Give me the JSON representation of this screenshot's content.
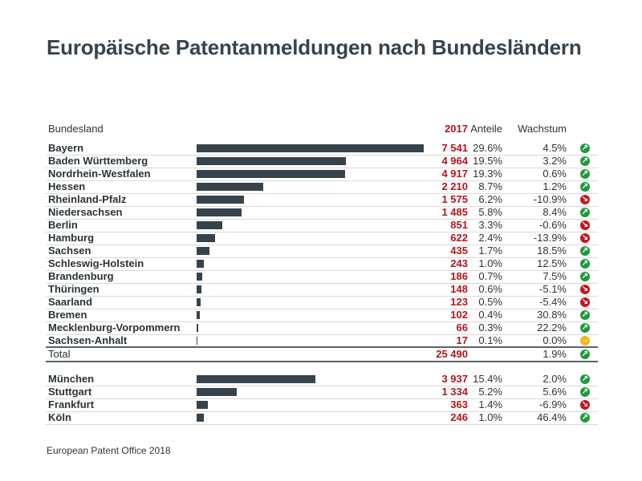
{
  "title": "Europäische Patentanmeldungen nach Bundesländern",
  "footer": "European Patent Office 2018",
  "colors": {
    "bar": "#37434b",
    "value": "#b2161c",
    "up": "#1f9a3a",
    "down": "#c8151b",
    "flat": "#f2b51c"
  },
  "chart_data": {
    "type": "table",
    "title": "Europäische Patentanmeldungen nach Bundesländern",
    "columns": [
      "Bundesland",
      "2017",
      "Anteile",
      "Wachstum"
    ],
    "rows": [
      {
        "name": "Bayern",
        "value": 7541,
        "value_label": "7 541",
        "share": "29.6%",
        "growth": "4.5%",
        "trend": "up"
      },
      {
        "name": "Baden Württemberg",
        "value": 4964,
        "value_label": "4 964",
        "share": "19.5%",
        "growth": "3.2%",
        "trend": "up"
      },
      {
        "name": "Nordrhein-Westfalen",
        "value": 4917,
        "value_label": "4 917",
        "share": "19.3%",
        "growth": "0.6%",
        "trend": "up"
      },
      {
        "name": "Hessen",
        "value": 2210,
        "value_label": "2 210",
        "share": "8.7%",
        "growth": "1.2%",
        "trend": "up"
      },
      {
        "name": "Rheinland-Pfalz",
        "value": 1575,
        "value_label": "1 575",
        "share": "6.2%",
        "growth": "-10.9%",
        "trend": "down"
      },
      {
        "name": "Niedersachsen",
        "value": 1485,
        "value_label": "1 485",
        "share": "5.8%",
        "growth": "8.4%",
        "trend": "up"
      },
      {
        "name": "Berlin",
        "value": 851,
        "value_label": "851",
        "share": "3.3%",
        "growth": "-0.6%",
        "trend": "down"
      },
      {
        "name": "Hamburg",
        "value": 622,
        "value_label": "622",
        "share": "2.4%",
        "growth": "-13.9%",
        "trend": "down"
      },
      {
        "name": "Sachsen",
        "value": 435,
        "value_label": "435",
        "share": "1.7%",
        "growth": "18.5%",
        "trend": "up"
      },
      {
        "name": "Schleswig-Holstein",
        "value": 243,
        "value_label": "243",
        "share": "1.0%",
        "growth": "12.5%",
        "trend": "up"
      },
      {
        "name": "Brandenburg",
        "value": 186,
        "value_label": "186",
        "share": "0.7%",
        "growth": "7.5%",
        "trend": "up"
      },
      {
        "name": "Thüringen",
        "value": 148,
        "value_label": "148",
        "share": "0.6%",
        "growth": "-5.1%",
        "trend": "down"
      },
      {
        "name": "Saarland",
        "value": 123,
        "value_label": "123",
        "share": "0.5%",
        "growth": "-5.4%",
        "trend": "down"
      },
      {
        "name": "Bremen",
        "value": 102,
        "value_label": "102",
        "share": "0.4%",
        "growth": "30.8%",
        "trend": "up"
      },
      {
        "name": "Mecklenburg-Vorpommern",
        "value": 66,
        "value_label": "66",
        "share": "0.3%",
        "growth": "22.2%",
        "trend": "up"
      },
      {
        "name": "Sachsen-Anhalt",
        "value": 17,
        "value_label": "17",
        "share": "0.1%",
        "growth": "0.0%",
        "trend": "flat"
      }
    ],
    "total": {
      "name": "Total",
      "value": 25490,
      "value_label": "25 490",
      "share": "",
      "growth": "1.9%",
      "trend": "up"
    },
    "cities": [
      {
        "name": "München",
        "value": 3937,
        "value_label": "3 937",
        "share": "15.4%",
        "growth": "2.0%",
        "trend": "up"
      },
      {
        "name": "Stuttgart",
        "value": 1334,
        "value_label": "1 334",
        "share": "5.2%",
        "growth": "5.6%",
        "trend": "up"
      },
      {
        "name": "Frankfurt",
        "value": 363,
        "value_label": "363",
        "share": "1.4%",
        "growth": "-6.9%",
        "trend": "down"
      },
      {
        "name": "Köln",
        "value": 246,
        "value_label": "246",
        "share": "1.0%",
        "growth": "46.4%",
        "trend": "up"
      }
    ]
  }
}
